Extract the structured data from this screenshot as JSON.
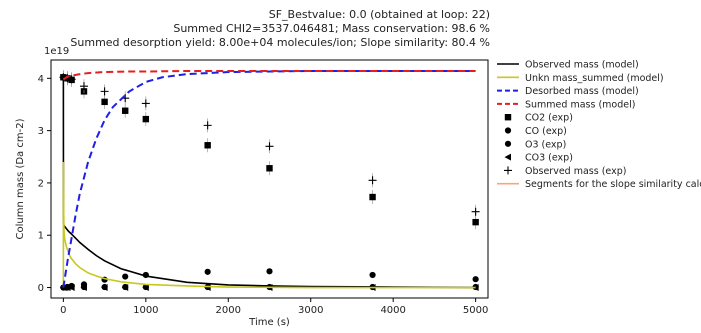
{
  "chart_data": {
    "type": "line",
    "header_lines": [
      "SF_Bestvalue: 0.0 (obtained at loop: 22)",
      "Summed CHI2=3537.046481; Mass conservation: 98.6 %",
      "Summed desorption yield: 8.00e+04 molecules/ion; Slope similarity: 80.4 %"
    ],
    "xlabel": "Time (s)",
    "ylabel": "Column mass (Da cm-2)",
    "y_offset_label": "1e19",
    "xlim": [
      -150,
      5150
    ],
    "ylim": [
      -0.2,
      4.35
    ],
    "xticks": [
      0,
      1000,
      2000,
      3000,
      4000,
      5000
    ],
    "yticks": [
      0,
      1,
      2,
      3,
      4
    ],
    "legend_position": "outside-right",
    "colors": {
      "observed_model": "#000000",
      "unkn_mass": "#c8c81e",
      "desorbed": "#1f1fe6",
      "summed": "#e61e1e",
      "segments": "#f4a582"
    },
    "series": [
      {
        "name": "Observed mass (model)",
        "kind": "line",
        "style": "solid",
        "color": "#000000",
        "x": [
          0,
          1,
          2,
          5,
          10,
          20,
          40,
          60,
          80,
          100,
          150,
          200,
          300,
          400,
          500,
          700,
          1000,
          1500,
          2000,
          2500,
          3000,
          4000,
          5000
        ],
        "y": [
          4.0,
          1.5,
          1.25,
          1.2,
          1.18,
          1.16,
          1.12,
          1.08,
          1.05,
          1.02,
          0.94,
          0.86,
          0.73,
          0.61,
          0.51,
          0.36,
          0.22,
          0.1,
          0.05,
          0.03,
          0.02,
          0.01,
          0.0
        ]
      },
      {
        "name": "Unkn mass_summed (model)",
        "kind": "line",
        "style": "solid",
        "color": "#c8c81e",
        "x": [
          0,
          1,
          3,
          6,
          10,
          20,
          30,
          50,
          80,
          100,
          150,
          200,
          300,
          400,
          500,
          700,
          1000,
          1500,
          2000,
          3000,
          4000,
          5000
        ],
        "y": [
          0.0,
          2.4,
          1.6,
          1.2,
          1.0,
          0.9,
          0.82,
          0.72,
          0.6,
          0.55,
          0.45,
          0.38,
          0.28,
          0.22,
          0.17,
          0.11,
          0.06,
          0.03,
          0.01,
          0.0,
          0.0,
          0.0
        ]
      },
      {
        "name": "Desorbed mass (model)",
        "kind": "line",
        "style": "dashed",
        "color": "#1f1fe6",
        "x": [
          0,
          50,
          100,
          150,
          200,
          300,
          400,
          500,
          600,
          800,
          1000,
          1200,
          1500,
          2000,
          2500,
          3000,
          4000,
          5000
        ],
        "y": [
          0.0,
          0.5,
          0.95,
          1.4,
          1.8,
          2.4,
          2.85,
          3.2,
          3.45,
          3.75,
          3.93,
          4.02,
          4.08,
          4.12,
          4.13,
          4.14,
          4.14,
          4.14
        ]
      },
      {
        "name": "Summed mass (model)",
        "kind": "line",
        "style": "dashed",
        "color": "#e61e1e",
        "x": [
          0,
          20,
          50,
          100,
          200,
          300,
          500,
          800,
          1000,
          1500,
          2000,
          3000,
          4000,
          5000
        ],
        "y": [
          3.98,
          4.0,
          4.03,
          4.05,
          4.08,
          4.1,
          4.12,
          4.13,
          4.13,
          4.14,
          4.14,
          4.14,
          4.14,
          4.14
        ]
      },
      {
        "name": "CO2 (exp)",
        "kind": "marker",
        "marker": "square",
        "color": "#000000",
        "x": [
          0,
          50,
          100,
          250,
          500,
          750,
          1000,
          1750,
          2500,
          3750,
          5000
        ],
        "y": [
          4.02,
          4.0,
          3.97,
          3.75,
          3.55,
          3.38,
          3.22,
          2.72,
          2.28,
          1.73,
          1.25
        ]
      },
      {
        "name": "CO (exp)",
        "kind": "marker",
        "marker": "circle",
        "color": "#000000",
        "x": [
          0,
          50,
          100,
          250,
          500,
          750,
          1000,
          1750,
          2500,
          3750,
          5000
        ],
        "y": [
          0.0,
          0.0,
          0.02,
          0.01,
          0.01,
          0.01,
          0.01,
          0.01,
          0.01,
          0.01,
          0.01
        ]
      },
      {
        "name": "O3 (exp)",
        "kind": "marker",
        "marker": "circle",
        "color": "#000000",
        "x": [
          0,
          50,
          100,
          250,
          500,
          750,
          1000,
          1750,
          2500,
          3750,
          5000
        ],
        "y": [
          0.0,
          0.01,
          0.03,
          0.06,
          0.15,
          0.21,
          0.24,
          0.3,
          0.31,
          0.24,
          0.16
        ]
      },
      {
        "name": "CO3 (exp)",
        "kind": "marker",
        "marker": "triangle-left",
        "color": "#000000",
        "x": [
          0,
          50,
          100,
          250,
          500,
          750,
          1000,
          1750,
          2500,
          3750,
          5000
        ],
        "y": [
          0.0,
          0.0,
          0.0,
          0.0,
          0.0,
          0.0,
          0.0,
          0.0,
          0.0,
          0.0,
          0.0
        ]
      },
      {
        "name": "Observed mass (exp)",
        "kind": "marker",
        "marker": "plus",
        "color": "#000000",
        "x": [
          0,
          50,
          100,
          250,
          500,
          750,
          1000,
          1750,
          2500,
          3750,
          5000
        ],
        "y": [
          4.02,
          4.0,
          3.98,
          3.85,
          3.75,
          3.62,
          3.52,
          3.1,
          2.7,
          2.05,
          1.45
        ]
      },
      {
        "name": "Segments for the slope similarity calc.",
        "kind": "line",
        "style": "solid",
        "color": "#f4a582",
        "x": [],
        "y": []
      }
    ]
  }
}
